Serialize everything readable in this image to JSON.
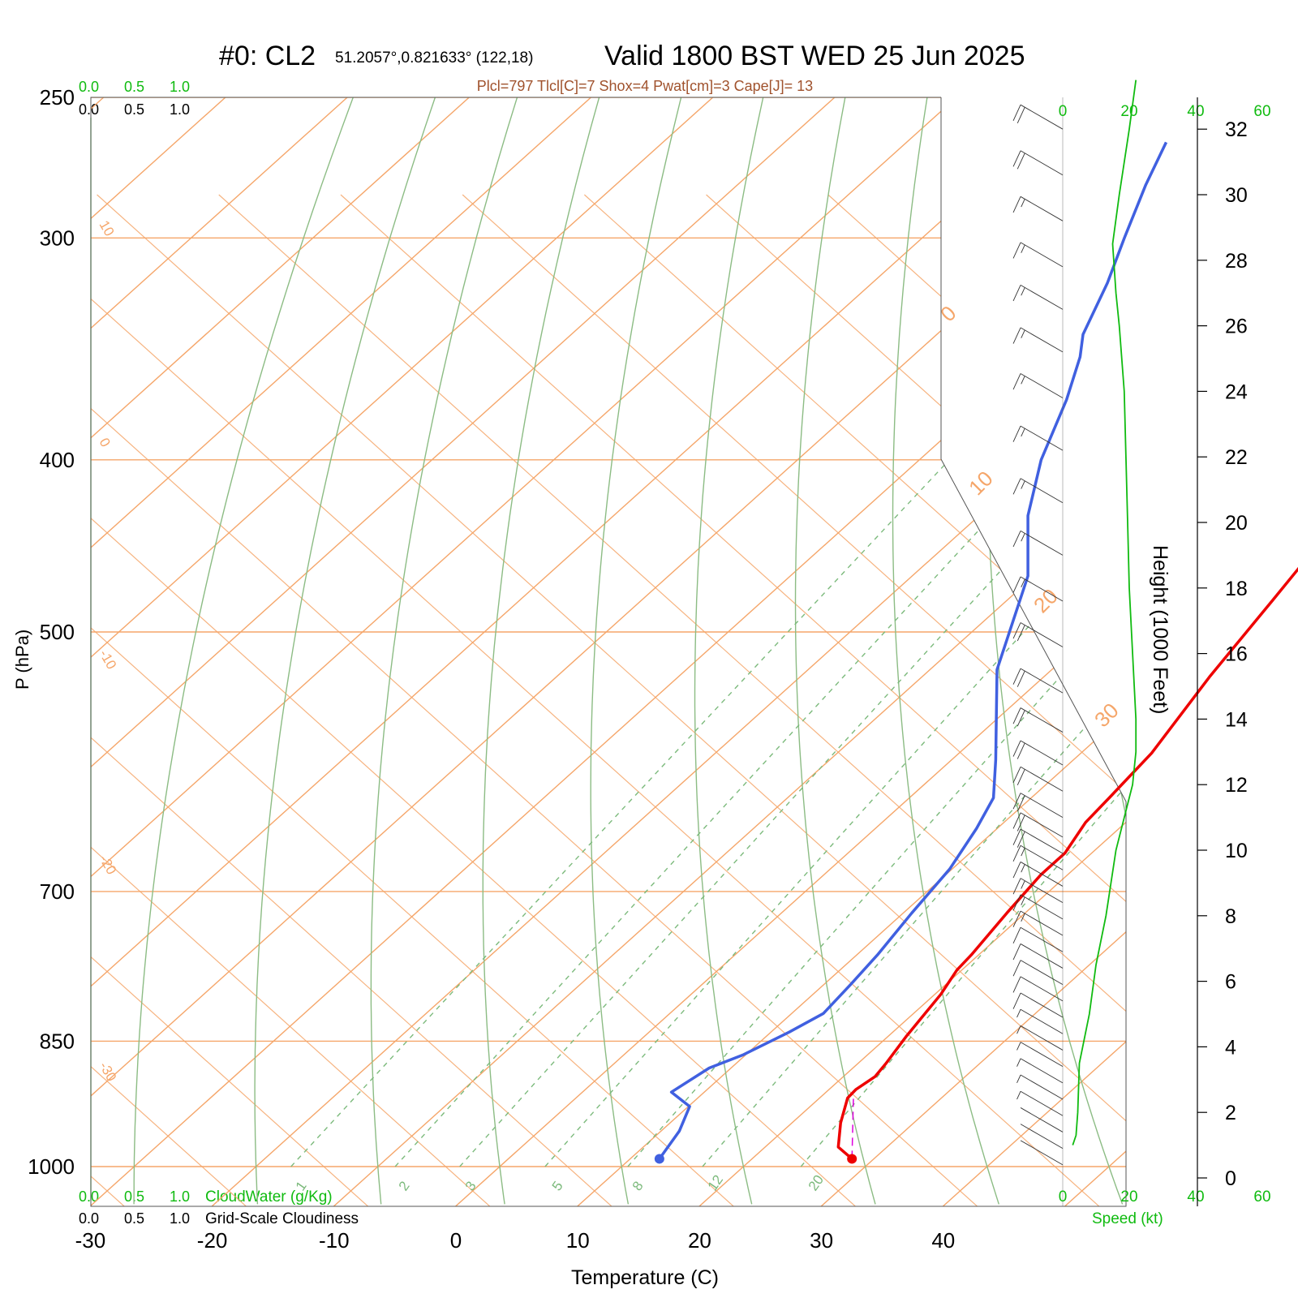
{
  "header": {
    "run_id": "#0: CL2",
    "location": "51.2057°,0.821633° (122,18)",
    "valid": "Valid 1800 BST WED 25 Jun 2025",
    "indices": "Plcl=797 Tlcl[C]=7 Shox=4 Pwat[cm]=3 Cape[J]= 13"
  },
  "colors": {
    "temperature": "#ee0000",
    "dewpoint": "#4060e0",
    "isotherm": "#f5a66a",
    "dry_adiabat": "#8cbc84",
    "mixing_ratio": "#7cba7c",
    "wind_speed": "#10bb10",
    "parcel": "#dd00dd",
    "cloud": "#10bb10"
  },
  "cloud_scale": {
    "top_cloudwater_ticks": [
      "0.0",
      "0.5",
      "1.0"
    ],
    "top_cloudiness_ticks": [
      "0.0",
      "0.5",
      "1.0"
    ],
    "bottom_cloudwater_ticks": [
      "0.0",
      "0.5",
      "1.0"
    ],
    "bottom_cloudiness_ticks": [
      "0.0",
      "0.5",
      "1.0"
    ],
    "cloudwater_label": "CloudWater (g/Kg)",
    "cloudiness_label": "Grid-Scale Cloudiness"
  },
  "speed_axis": {
    "ticks": [
      "0",
      "20",
      "40",
      "60"
    ],
    "label": "Speed (kt)"
  },
  "chart_data": {
    "type": "line",
    "xlabel": "Temperature (C)",
    "ylabel": "P (hPa)",
    "y2label": "Height (1000 Feet)",
    "x_ticks": [
      -30,
      -20,
      -10,
      0,
      10,
      20,
      30,
      40
    ],
    "p_ticks": [
      250,
      300,
      400,
      500,
      700,
      850,
      1000
    ],
    "height_ticks": [
      0,
      2,
      4,
      6,
      8,
      10,
      12,
      14,
      16,
      18,
      20,
      22,
      24,
      26,
      28,
      30,
      32
    ],
    "isotherm_labels_left": [
      "10",
      "0",
      "-10",
      "-20",
      "-30"
    ],
    "isotherm_labels_right": [
      "0",
      "10",
      "20",
      "30"
    ],
    "mixing_ratio_labels": [
      "1",
      "2",
      "3",
      "5",
      "8",
      "12",
      "20"
    ],
    "series": [
      {
        "key": "temperature",
        "points": [
          [
            28.2,
            990
          ],
          [
            26,
            975
          ],
          [
            24,
            945
          ],
          [
            22.3,
            915
          ],
          [
            22.2,
            905
          ],
          [
            22.6,
            890
          ],
          [
            22.3,
            875
          ],
          [
            21.5,
            845
          ],
          [
            20.5,
            800
          ],
          [
            19.6,
            775
          ],
          [
            19.4,
            760
          ],
          [
            18.5,
            720
          ],
          [
            17.8,
            685
          ],
          [
            17.8,
            666
          ],
          [
            16.7,
            640
          ],
          [
            16.4,
            620
          ],
          [
            15.8,
            585
          ],
          [
            13.6,
            530
          ],
          [
            11.8,
            480
          ],
          [
            10.6,
            450
          ],
          [
            10.2,
            430
          ],
          [
            7.8,
            400
          ],
          [
            5.4,
            375
          ],
          [
            2.6,
            345
          ],
          [
            0.2,
            320
          ],
          [
            -1.6,
            300
          ],
          [
            -4.0,
            275
          ],
          [
            -5.0,
            265
          ]
        ]
      },
      {
        "key": "dewpoint",
        "points": [
          [
            12.4,
            990
          ],
          [
            11.5,
            955
          ],
          [
            10.1,
            925
          ],
          [
            7.3,
            908
          ],
          [
            8.2,
            880
          ],
          [
            9.8,
            865
          ],
          [
            11.5,
            840
          ],
          [
            12.6,
            820
          ],
          [
            12.2,
            790
          ],
          [
            11.7,
            760
          ],
          [
            10.7,
            720
          ],
          [
            9.8,
            680
          ],
          [
            8.3,
            645
          ],
          [
            6.9,
            620
          ],
          [
            3.6,
            590
          ],
          [
            -4.5,
            525
          ],
          [
            -10.5,
            465
          ],
          [
            -16,
            430
          ],
          [
            -20,
            400
          ],
          [
            -23.4,
            370
          ],
          [
            -26.2,
            350
          ],
          [
            -28,
            340
          ],
          [
            -30.7,
            318
          ],
          [
            -33.4,
            300
          ],
          [
            -36.5,
            280
          ],
          [
            -38.7,
            265
          ]
        ]
      },
      {
        "key": "parcel",
        "points": [
          [
            28.2,
            990
          ],
          [
            22.4,
            910
          ]
        ]
      },
      {
        "key": "wind_speed",
        "points": [
          [
            3,
            1
          ],
          [
            4,
            1.3
          ],
          [
            4.5,
            2
          ],
          [
            5,
            3.5
          ],
          [
            6,
            4
          ],
          [
            8,
            5
          ],
          [
            10,
            6.5
          ],
          [
            13,
            8
          ],
          [
            16,
            10
          ],
          [
            21,
            12
          ],
          [
            22,
            13
          ],
          [
            22,
            14
          ],
          [
            21,
            16
          ],
          [
            20,
            18
          ],
          [
            19.5,
            20
          ],
          [
            19,
            22
          ],
          [
            18.5,
            24
          ],
          [
            17,
            26
          ],
          [
            16,
            27
          ],
          [
            15,
            28.5
          ],
          [
            17,
            30
          ],
          [
            20,
            32
          ],
          [
            22,
            33.5
          ]
        ]
      }
    ],
    "wind_barbs": {
      "direction_deg": 300,
      "levels_kft": [
        0.4,
        0.9,
        1.4,
        1.9,
        2.4,
        2.9,
        3.4,
        3.9,
        4.4,
        4.9,
        5.4,
        5.9,
        6.4,
        6.9,
        7.4,
        7.9,
        8.4,
        8.9,
        9.4,
        9.9,
        10.4,
        11.0,
        11.8,
        12.6,
        13.6,
        14.8,
        16.2,
        17.6,
        19.0,
        20.6,
        22.2,
        23.8,
        25.2,
        26.5,
        27.8,
        29.2,
        30.6,
        32.0
      ],
      "speeds_kt": [
        3,
        4,
        4,
        5,
        5,
        6,
        7,
        8,
        9,
        10,
        11,
        12,
        13,
        14,
        15,
        16,
        17,
        18,
        19,
        20,
        21,
        22,
        22,
        22,
        21,
        20,
        20,
        19,
        19,
        18,
        17,
        16,
        15,
        15,
        16,
        18,
        20,
        22
      ]
    }
  }
}
